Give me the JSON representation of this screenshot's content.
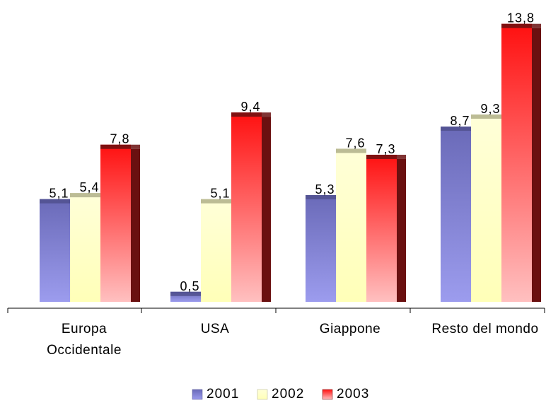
{
  "chart_data": {
    "type": "bar",
    "title": "",
    "xlabel": "",
    "ylabel": "",
    "ylim": [
      0,
      14
    ],
    "grid": false,
    "legend_position": "bottom",
    "categories": [
      [
        "Europa",
        "Occidentale"
      ],
      [
        "USA"
      ],
      [
        "Giappone"
      ],
      [
        "Resto del mondo"
      ]
    ],
    "series": [
      {
        "name": "2001",
        "values": [
          5.1,
          0.5,
          5.3,
          8.7
        ],
        "labels": [
          "5,1",
          "0,5",
          "5,3",
          "8,7"
        ],
        "color_top": "#6a6ab8",
        "color_bottom": "#9c9cee",
        "color_side": "#50508e"
      },
      {
        "name": "2002",
        "values": [
          5.4,
          5.1,
          7.6,
          9.3
        ],
        "labels": [
          "5,4",
          "5,1",
          "7,6",
          "9,3"
        ],
        "color_top": "#ffffd8",
        "color_bottom": "#ffffb8",
        "color_side": "#b0b08a"
      },
      {
        "name": "2003",
        "values": [
          7.8,
          9.4,
          7.3,
          13.8
        ],
        "labels": [
          "7,8",
          "9,4",
          "7,3",
          "13,8"
        ],
        "color_top": "#ff1010",
        "color_bottom": "#ffc0c0",
        "color_side": "#6a1010"
      }
    ]
  }
}
